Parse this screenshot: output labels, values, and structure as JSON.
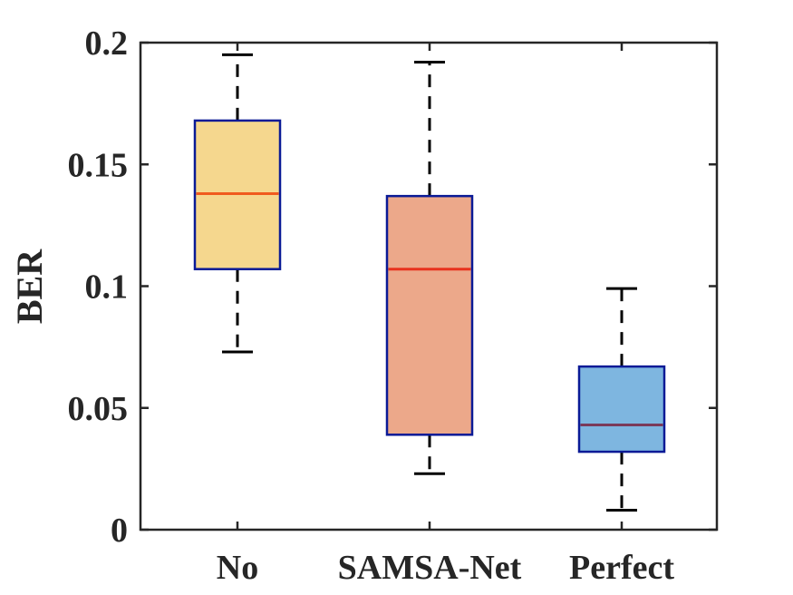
{
  "chart_data": {
    "type": "box",
    "title": "",
    "xlabel": "",
    "ylabel": "BER",
    "ylim": [
      0,
      0.2
    ],
    "yticks": [
      0,
      0.05,
      0.1,
      0.15,
      0.2
    ],
    "ytick_labels": [
      "0",
      "0.05",
      "0.1",
      "0.15",
      "0.2"
    ],
    "grid": false,
    "categories": [
      "No",
      "SAMSA-Net",
      "Perfect"
    ],
    "boxes": [
      {
        "category": "No",
        "whisker_low": 0.073,
        "q1": 0.107,
        "median": 0.138,
        "q3": 0.168,
        "whisker_high": 0.195,
        "fill": "#F5D78E",
        "median_color": "#F05A1E"
      },
      {
        "category": "SAMSA-Net",
        "whisker_low": 0.023,
        "q1": 0.039,
        "median": 0.107,
        "q3": 0.137,
        "whisker_high": 0.192,
        "fill": "#ECA88A",
        "median_color": "#E8321E"
      },
      {
        "category": "Perfect",
        "whisker_low": 0.008,
        "q1": 0.032,
        "median": 0.043,
        "q3": 0.067,
        "whisker_high": 0.099,
        "fill": "#7EB6E0",
        "median_color": "#7A3A5A"
      }
    ],
    "box_edge_color": "#0A1A96",
    "whisker_color": "#000000",
    "axis_color": "#262626"
  }
}
